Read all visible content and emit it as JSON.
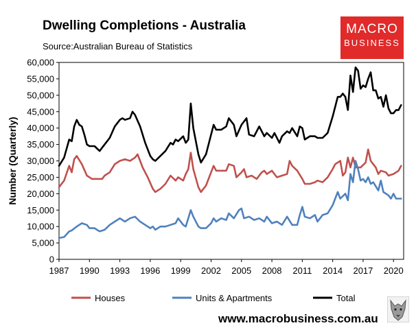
{
  "header": {
    "title": "Dwelling Completions - Australia",
    "subtitle": "Source:Australian Bureau of Statistics"
  },
  "logo": {
    "line1": "MACRO",
    "line2": "BUSINESS",
    "color": "#e12a2a"
  },
  "footer": {
    "url": "www.macrobusiness.com.au"
  },
  "chart_data": {
    "type": "line",
    "title": "Dwelling Completions - Australia",
    "xlabel": "",
    "ylabel": "Number (Quarterly)",
    "ylim": [
      0,
      60000
    ],
    "yticks": [
      0,
      5000,
      10000,
      15000,
      20000,
      25000,
      30000,
      35000,
      40000,
      45000,
      50000,
      55000,
      60000
    ],
    "yticklabels": [
      "0",
      "5,000",
      "10,000",
      "15,000",
      "20,000",
      "25,000",
      "30,000",
      "35,000",
      "40,000",
      "45,000",
      "50,000",
      "55,000",
      "60,000"
    ],
    "xlim": [
      1987,
      2021
    ],
    "xticks": [
      1987,
      1990,
      1993,
      1996,
      1999,
      2002,
      2005,
      2008,
      2011,
      2014,
      2017,
      2020
    ],
    "xticklabels": [
      "1987",
      "1990",
      "1993",
      "1996",
      "1999",
      "2002",
      "2005",
      "2008",
      "2011",
      "2014",
      "2017",
      "2020"
    ],
    "legend_position": "bottom",
    "series": [
      {
        "name": "Houses",
        "color": "#c0504d",
        "points": [
          [
            1987.0,
            22000
          ],
          [
            1987.5,
            24000
          ],
          [
            1988.0,
            28500
          ],
          [
            1988.25,
            26500
          ],
          [
            1988.5,
            30500
          ],
          [
            1988.75,
            31500
          ],
          [
            1989.25,
            29000
          ],
          [
            1989.75,
            25500
          ],
          [
            1990.25,
            24500
          ],
          [
            1990.75,
            24500
          ],
          [
            1991.25,
            24500
          ],
          [
            1991.5,
            25500
          ],
          [
            1992.0,
            26500
          ],
          [
            1992.5,
            29000
          ],
          [
            1993.0,
            30000
          ],
          [
            1993.5,
            30500
          ],
          [
            1994.0,
            30000
          ],
          [
            1994.5,
            31000
          ],
          [
            1994.75,
            32000
          ],
          [
            1995.25,
            28000
          ],
          [
            1995.75,
            25000
          ],
          [
            1996.25,
            21500
          ],
          [
            1996.5,
            20500
          ],
          [
            1997.0,
            21500
          ],
          [
            1997.5,
            23000
          ],
          [
            1998.0,
            25500
          ],
          [
            1998.5,
            24000
          ],
          [
            1998.75,
            25000
          ],
          [
            1999.25,
            24000
          ],
          [
            1999.5,
            26000
          ],
          [
            1999.75,
            27500
          ],
          [
            2000.0,
            32500
          ],
          [
            2000.25,
            27500
          ],
          [
            2000.75,
            22000
          ],
          [
            2001.0,
            20500
          ],
          [
            2001.5,
            22500
          ],
          [
            2002.0,
            26500
          ],
          [
            2002.25,
            28500
          ],
          [
            2002.5,
            27000
          ],
          [
            2003.0,
            27000
          ],
          [
            2003.5,
            27000
          ],
          [
            2003.75,
            29000
          ],
          [
            2004.25,
            28500
          ],
          [
            2004.5,
            25000
          ],
          [
            2005.0,
            26500
          ],
          [
            2005.25,
            27500
          ],
          [
            2005.5,
            25000
          ],
          [
            2006.0,
            25500
          ],
          [
            2006.5,
            24500
          ],
          [
            2007.0,
            26500
          ],
          [
            2007.25,
            27000
          ],
          [
            2007.5,
            26000
          ],
          [
            2008.0,
            27000
          ],
          [
            2008.5,
            25000
          ],
          [
            2009.0,
            25500
          ],
          [
            2009.5,
            26000
          ],
          [
            2009.75,
            30000
          ],
          [
            2010.0,
            28500
          ],
          [
            2010.5,
            27000
          ],
          [
            2011.0,
            24500
          ],
          [
            2011.25,
            23000
          ],
          [
            2011.75,
            23000
          ],
          [
            2012.25,
            23500
          ],
          [
            2012.5,
            24000
          ],
          [
            2013.0,
            23500
          ],
          [
            2013.5,
            25000
          ],
          [
            2014.0,
            27500
          ],
          [
            2014.25,
            29000
          ],
          [
            2014.75,
            30000
          ],
          [
            2015.0,
            25500
          ],
          [
            2015.25,
            26500
          ],
          [
            2015.5,
            31000
          ],
          [
            2015.75,
            28000
          ],
          [
            2016.0,
            31000
          ],
          [
            2016.25,
            28000
          ],
          [
            2016.75,
            28000
          ],
          [
            2017.25,
            29500
          ],
          [
            2017.5,
            33500
          ],
          [
            2017.75,
            30000
          ],
          [
            2018.0,
            29000
          ],
          [
            2018.25,
            28000
          ],
          [
            2018.5,
            26000
          ],
          [
            2018.75,
            27000
          ],
          [
            2019.25,
            26500
          ],
          [
            2019.5,
            25500
          ],
          [
            2020.0,
            26000
          ],
          [
            2020.5,
            27000
          ],
          [
            2020.75,
            28500
          ]
        ]
      },
      {
        "name": "Units & Apartments",
        "color": "#4f81bd",
        "points": [
          [
            1987.0,
            6500
          ],
          [
            1987.5,
            6800
          ],
          [
            1988.0,
            8500
          ],
          [
            1988.25,
            8800
          ],
          [
            1988.75,
            10000
          ],
          [
            1989.25,
            11000
          ],
          [
            1989.75,
            10500
          ],
          [
            1990.0,
            9500
          ],
          [
            1990.5,
            9500
          ],
          [
            1991.0,
            8500
          ],
          [
            1991.5,
            9000
          ],
          [
            1992.0,
            10500
          ],
          [
            1992.5,
            11500
          ],
          [
            1993.0,
            12500
          ],
          [
            1993.5,
            11500
          ],
          [
            1994.0,
            12500
          ],
          [
            1994.5,
            13000
          ],
          [
            1995.0,
            11500
          ],
          [
            1995.5,
            10500
          ],
          [
            1996.0,
            9500
          ],
          [
            1996.25,
            10000
          ],
          [
            1996.5,
            9000
          ],
          [
            1997.0,
            10000
          ],
          [
            1997.5,
            10000
          ],
          [
            1998.0,
            10500
          ],
          [
            1998.5,
            11000
          ],
          [
            1998.75,
            12500
          ],
          [
            1999.25,
            10500
          ],
          [
            1999.5,
            10000
          ],
          [
            2000.0,
            15000
          ],
          [
            2000.25,
            13000
          ],
          [
            2000.75,
            10000
          ],
          [
            2001.0,
            9500
          ],
          [
            2001.5,
            9500
          ],
          [
            2002.0,
            11000
          ],
          [
            2002.25,
            12500
          ],
          [
            2002.5,
            11500
          ],
          [
            2003.0,
            12500
          ],
          [
            2003.5,
            12000
          ],
          [
            2003.75,
            14000
          ],
          [
            2004.25,
            12500
          ],
          [
            2004.75,
            15000
          ],
          [
            2005.0,
            15500
          ],
          [
            2005.25,
            12500
          ],
          [
            2005.75,
            13000
          ],
          [
            2006.25,
            12000
          ],
          [
            2006.75,
            12500
          ],
          [
            2007.25,
            11500
          ],
          [
            2007.5,
            13000
          ],
          [
            2008.0,
            11000
          ],
          [
            2008.5,
            11500
          ],
          [
            2009.0,
            10500
          ],
          [
            2009.5,
            13000
          ],
          [
            2010.0,
            10500
          ],
          [
            2010.5,
            10500
          ],
          [
            2010.75,
            13500
          ],
          [
            2011.0,
            16000
          ],
          [
            2011.25,
            13000
          ],
          [
            2011.75,
            12500
          ],
          [
            2012.25,
            13500
          ],
          [
            2012.5,
            11500
          ],
          [
            2013.0,
            13500
          ],
          [
            2013.5,
            14000
          ],
          [
            2014.0,
            16500
          ],
          [
            2014.5,
            20500
          ],
          [
            2014.75,
            18500
          ],
          [
            2015.25,
            20000
          ],
          [
            2015.5,
            18000
          ],
          [
            2015.75,
            26000
          ],
          [
            2016.0,
            23500
          ],
          [
            2016.25,
            30000
          ],
          [
            2016.5,
            27500
          ],
          [
            2016.75,
            24000
          ],
          [
            2017.0,
            24500
          ],
          [
            2017.25,
            23500
          ],
          [
            2017.5,
            25000
          ],
          [
            2017.75,
            23000
          ],
          [
            2018.0,
            23500
          ],
          [
            2018.5,
            21000
          ],
          [
            2018.75,
            24000
          ],
          [
            2019.0,
            20500
          ],
          [
            2019.5,
            19500
          ],
          [
            2019.75,
            18500
          ],
          [
            2020.0,
            20000
          ],
          [
            2020.25,
            18500
          ],
          [
            2020.75,
            18500
          ]
        ]
      },
      {
        "name": "Total",
        "color": "#000000",
        "points": [
          [
            1987.0,
            28500
          ],
          [
            1987.5,
            31000
          ],
          [
            1988.0,
            36500
          ],
          [
            1988.25,
            36000
          ],
          [
            1988.5,
            40500
          ],
          [
            1988.75,
            42500
          ],
          [
            1989.0,
            41000
          ],
          [
            1989.25,
            40500
          ],
          [
            1989.5,
            38000
          ],
          [
            1989.75,
            35000
          ],
          [
            1990.0,
            34500
          ],
          [
            1990.5,
            34500
          ],
          [
            1991.0,
            33000
          ],
          [
            1991.5,
            35000
          ],
          [
            1992.0,
            37000
          ],
          [
            1992.5,
            40500
          ],
          [
            1993.0,
            42500
          ],
          [
            1993.25,
            43000
          ],
          [
            1993.5,
            42500
          ],
          [
            1994.0,
            43000
          ],
          [
            1994.25,
            45000
          ],
          [
            1994.5,
            44000
          ],
          [
            1995.0,
            40500
          ],
          [
            1995.5,
            35500
          ],
          [
            1996.0,
            31500
          ],
          [
            1996.25,
            30500
          ],
          [
            1996.5,
            30000
          ],
          [
            1997.0,
            31500
          ],
          [
            1997.5,
            33000
          ],
          [
            1998.0,
            35500
          ],
          [
            1998.25,
            35000
          ],
          [
            1998.5,
            36500
          ],
          [
            1998.75,
            36000
          ],
          [
            1999.25,
            37500
          ],
          [
            1999.5,
            35500
          ],
          [
            1999.75,
            36500
          ],
          [
            2000.0,
            47500
          ],
          [
            2000.25,
            40000
          ],
          [
            2000.75,
            32000
          ],
          [
            2001.0,
            29500
          ],
          [
            2001.5,
            32000
          ],
          [
            2001.75,
            35000
          ],
          [
            2002.0,
            38000
          ],
          [
            2002.25,
            41000
          ],
          [
            2002.5,
            39500
          ],
          [
            2003.0,
            39500
          ],
          [
            2003.5,
            40500
          ],
          [
            2003.75,
            43000
          ],
          [
            2004.25,
            41000
          ],
          [
            2004.5,
            37500
          ],
          [
            2005.0,
            41000
          ],
          [
            2005.5,
            43000
          ],
          [
            2005.75,
            38000
          ],
          [
            2006.25,
            37500
          ],
          [
            2006.75,
            40500
          ],
          [
            2007.0,
            39000
          ],
          [
            2007.25,
            37500
          ],
          [
            2007.5,
            38500
          ],
          [
            2008.0,
            37000
          ],
          [
            2008.25,
            38500
          ],
          [
            2008.75,
            35500
          ],
          [
            2009.0,
            37500
          ],
          [
            2009.5,
            39000
          ],
          [
            2009.75,
            38500
          ],
          [
            2010.0,
            40000
          ],
          [
            2010.5,
            37500
          ],
          [
            2010.75,
            40500
          ],
          [
            2011.0,
            40000
          ],
          [
            2011.25,
            36500
          ],
          [
            2011.75,
            37500
          ],
          [
            2012.25,
            37500
          ],
          [
            2012.5,
            37000
          ],
          [
            2013.0,
            37000
          ],
          [
            2013.5,
            38500
          ],
          [
            2014.0,
            43500
          ],
          [
            2014.5,
            49500
          ],
          [
            2014.75,
            49500
          ],
          [
            2015.0,
            50500
          ],
          [
            2015.25,
            49500
          ],
          [
            2015.5,
            45500
          ],
          [
            2015.75,
            56000
          ],
          [
            2016.0,
            51000
          ],
          [
            2016.25,
            58500
          ],
          [
            2016.5,
            57500
          ],
          [
            2016.75,
            52000
          ],
          [
            2017.0,
            53000
          ],
          [
            2017.25,
            52500
          ],
          [
            2017.5,
            55000
          ],
          [
            2017.75,
            57000
          ],
          [
            2018.0,
            51500
          ],
          [
            2018.25,
            51500
          ],
          [
            2018.5,
            49000
          ],
          [
            2018.75,
            49500
          ],
          [
            2019.0,
            46500
          ],
          [
            2019.25,
            50000
          ],
          [
            2019.5,
            46000
          ],
          [
            2019.75,
            44500
          ],
          [
            2020.0,
            44500
          ],
          [
            2020.25,
            45500
          ],
          [
            2020.5,
            45500
          ],
          [
            2020.75,
            47000
          ]
        ]
      }
    ]
  }
}
